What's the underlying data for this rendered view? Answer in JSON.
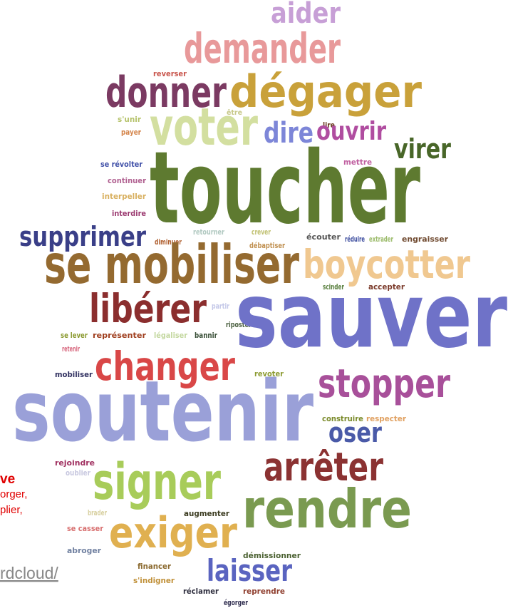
{
  "words": [
    {
      "text": "aider",
      "color": "#c79fd6"
    },
    {
      "text": "demander",
      "color": "#e8999a"
    },
    {
      "text": "reverser",
      "color": "#c8534a"
    },
    {
      "text": "donner",
      "color": "#7b3a62"
    },
    {
      "text": "dégager",
      "color": "#c9a13a"
    },
    {
      "text": "être",
      "color": "#c8c98a"
    },
    {
      "text": "s'unir",
      "color": "#b5c26a"
    },
    {
      "text": "lire",
      "color": "#6b3a20"
    },
    {
      "text": "payer",
      "color": "#d4844a"
    },
    {
      "text": "voter",
      "color": "#d3dfa0"
    },
    {
      "text": "dire",
      "color": "#7d86d8"
    },
    {
      "text": "ouvrir",
      "color": "#b04da0"
    },
    {
      "text": "virer",
      "color": "#486628"
    },
    {
      "text": "mettre",
      "color": "#c05fa0"
    },
    {
      "text": "se révolter",
      "color": "#4050a8"
    },
    {
      "text": "continuer",
      "color": "#b06090"
    },
    {
      "text": "interpeller",
      "color": "#d8b060"
    },
    {
      "text": "interdire",
      "color": "#9b3a70"
    },
    {
      "text": "toucher",
      "color": "#5e7a30"
    },
    {
      "text": "supprimer",
      "color": "#3a3f88"
    },
    {
      "text": "diminuer",
      "color": "#b06030"
    },
    {
      "text": "retourner",
      "color": "#b0c8c0"
    },
    {
      "text": "crever",
      "color": "#c0c070"
    },
    {
      "text": "écouter",
      "color": "#555555"
    },
    {
      "text": "réduire",
      "color": "#4050a0"
    },
    {
      "text": "extrader",
      "color": "#9bbb6a"
    },
    {
      "text": "engraisser",
      "color": "#704a30"
    },
    {
      "text": "débaptiser",
      "color": "#c09050"
    },
    {
      "text": "se mobiliser",
      "color": "#946a30"
    },
    {
      "text": "boycotter",
      "color": "#f0c890"
    },
    {
      "text": "scinder",
      "color": "#5a8040"
    },
    {
      "text": "accepter",
      "color": "#7a3a2a"
    },
    {
      "text": "libérer",
      "color": "#8b2e2e"
    },
    {
      "text": "partir",
      "color": "#c4c8e8"
    },
    {
      "text": "riposter",
      "color": "#4b6040"
    },
    {
      "text": "sauver",
      "color": "#6f72c8"
    },
    {
      "text": "se lever",
      "color": "#8b9a30"
    },
    {
      "text": "représenter",
      "color": "#a04020"
    },
    {
      "text": "légaliser",
      "color": "#c4d8a0"
    },
    {
      "text": "bannir",
      "color": "#3a5038"
    },
    {
      "text": "retenir",
      "color": "#d86a80"
    },
    {
      "text": "changer",
      "color": "#d94747"
    },
    {
      "text": "mobiliser",
      "color": "#303060"
    },
    {
      "text": "revoter",
      "color": "#8b9a30"
    },
    {
      "text": "stopper",
      "color": "#a8509a"
    },
    {
      "text": "soutenir",
      "color": "#9aa0d8"
    },
    {
      "text": "construire",
      "color": "#7a8a2a"
    },
    {
      "text": "respecter",
      "color": "#e0a060"
    },
    {
      "text": "oser",
      "color": "#4a5aa8"
    },
    {
      "text": "rejoindre",
      "color": "#a03060"
    },
    {
      "text": "oublier",
      "color": "#c8c8e0"
    },
    {
      "text": "signer",
      "color": "#a8cc5a"
    },
    {
      "text": "arrêter",
      "color": "#8b3232"
    },
    {
      "text": "brader",
      "color": "#d8d0a0"
    },
    {
      "text": "augmenter",
      "color": "#3b3b20"
    },
    {
      "text": "rendre",
      "color": "#7a9a50"
    },
    {
      "text": "se casser",
      "color": "#d87070"
    },
    {
      "text": "exiger",
      "color": "#e0b050"
    },
    {
      "text": "abroger",
      "color": "#7080a0"
    },
    {
      "text": "démissionner",
      "color": "#4a6030"
    },
    {
      "text": "financer",
      "color": "#8b6a30"
    },
    {
      "text": "laisser",
      "color": "#5a64c0"
    },
    {
      "text": "s'indigner",
      "color": "#c09038"
    },
    {
      "text": "réclamer",
      "color": "#303040"
    },
    {
      "text": "reprendre",
      "color": "#904030"
    },
    {
      "text": "égorger",
      "color": "#302e50"
    }
  ],
  "fragments": [
    "ve",
    "orger,",
    "plier,",
    "rdcloud/"
  ]
}
